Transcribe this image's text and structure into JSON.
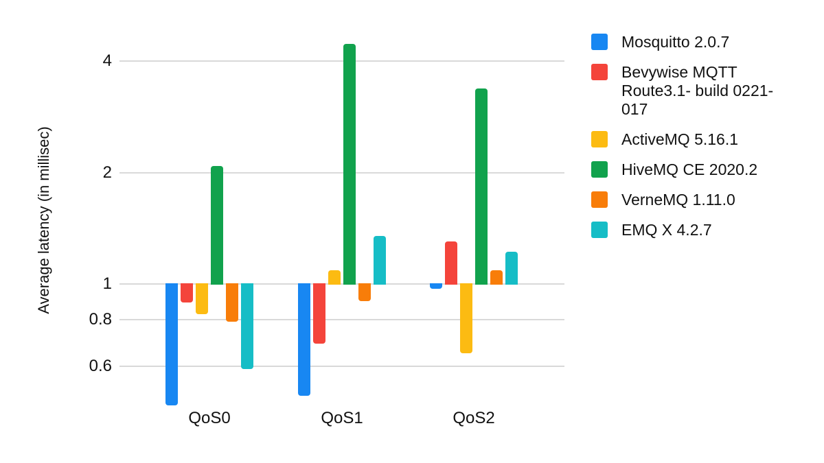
{
  "chart_data": {
    "type": "bar",
    "title": "",
    "xlabel": "",
    "ylabel": "Average latency (in millisec)",
    "y_scale": "log2",
    "baseline": 1,
    "grid": true,
    "legend_position": "right",
    "yticks": [
      "4",
      "2",
      "1",
      "0.8",
      "0.6"
    ],
    "categories": [
      "QoS0",
      "QoS1",
      "QoS2"
    ],
    "series": [
      {
        "name": "Mosquitto 2.0.7",
        "color": "#1887F2",
        "values": [
          0.47,
          0.5,
          0.97
        ],
        "legend_lines": [
          "Mosquitto 2.0.7"
        ]
      },
      {
        "name": "Bevywise MQTT Route3.1- build 0221-017",
        "color": "#F4443B",
        "values": [
          0.89,
          0.69,
          1.3
        ],
        "legend_lines": [
          "Bevywise MQTT",
          "Route3.1- build 0221-",
          "017"
        ]
      },
      {
        "name": "ActiveMQ 5.16.1",
        "color": "#FCBB12",
        "values": [
          0.83,
          1.09,
          0.65
        ],
        "legend_lines": [
          "ActiveMQ 5.16.1"
        ]
      },
      {
        "name": "HiveMQ CE 2020.2",
        "color": "#11A24D",
        "values": [
          2.08,
          4.45,
          3.37
        ],
        "legend_lines": [
          "HiveMQ CE 2020.2"
        ]
      },
      {
        "name": "VerneMQ 1.11.0",
        "color": "#F87D09",
        "values": [
          0.79,
          0.9,
          1.09
        ],
        "legend_lines": [
          "VerneMQ 1.11.0"
        ]
      },
      {
        "name": "EMQ X 4.2.7",
        "color": "#16BDC6",
        "values": [
          0.59,
          1.35,
          1.22
        ],
        "legend_lines": [
          "EMQ X 4.2.7"
        ]
      }
    ]
  }
}
